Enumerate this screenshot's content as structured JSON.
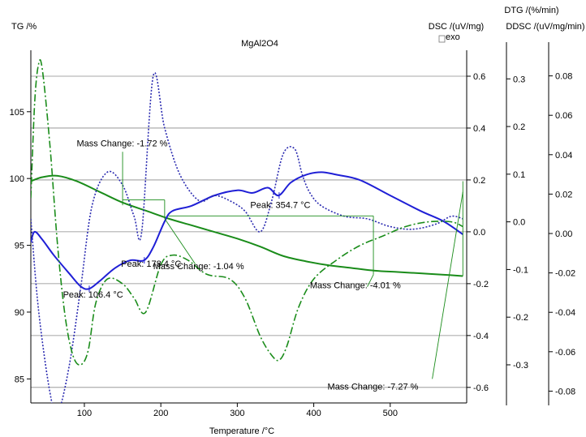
{
  "chart_data": {
    "type": "line",
    "title": "MgAl2O4",
    "xlabel": "Temperature /°C",
    "x_ticks": [
      100,
      200,
      300,
      400,
      500
    ],
    "xlim": [
      30,
      600
    ],
    "axes": {
      "tg": {
        "label": "TG /%",
        "ticks": [
          85,
          90,
          95,
          100,
          105
        ],
        "lim": [
          83.2,
          109.6
        ]
      },
      "dsc": {
        "label": "DSC /(uV/mg)",
        "ticks": [
          -0.6,
          -0.4,
          -0.2,
          0.0,
          0.2,
          0.4,
          0.6
        ],
        "tick_labels": [
          "-0.6",
          "-0.4",
          "-0.2",
          "0.0",
          "0.2",
          "0.4",
          "0.6"
        ],
        "lim": [
          -0.66,
          0.7
        ]
      },
      "dtg": {
        "label": "DTG /(%/min)",
        "ticks": [
          -0.3,
          -0.2,
          -0.1,
          0.0,
          0.1,
          0.2,
          0.3
        ],
        "tick_labels": [
          "-0.3",
          "-0.2",
          "-0.1",
          "0.0",
          "0.1",
          "0.2",
          "0.3"
        ],
        "lim": [
          -0.38,
          0.36
        ]
      },
      "ddsc": {
        "label": "DDSC /(uV/mg/min)",
        "ticks": [
          -0.08,
          -0.06,
          -0.04,
          -0.02,
          0.0,
          0.02,
          0.04,
          0.06,
          0.08
        ],
        "tick_labels": [
          "-0.08",
          "-0.06",
          "-0.04",
          "-0.02",
          "0.00",
          "0.02",
          "0.04",
          "0.06",
          "0.08"
        ],
        "lim": [
          -0.086,
          0.093
        ]
      }
    },
    "exo_label": "exo",
    "series": [
      {
        "axis": "tg",
        "color": "#1a8c1a",
        "style": "solid",
        "x": [
          30,
          45,
          65,
          90,
          120,
          150,
          180,
          210,
          240,
          270,
          300,
          330,
          360,
          390,
          420,
          450,
          480,
          510,
          540,
          570,
          595
        ],
        "y": [
          99.8,
          100.1,
          100.2,
          99.8,
          99.0,
          98.2,
          97.6,
          97.0,
          96.5,
          96.0,
          95.5,
          94.9,
          94.2,
          93.8,
          93.5,
          93.3,
          93.1,
          93.0,
          92.9,
          92.8,
          92.7
        ]
      },
      {
        "axis": "dsc",
        "color": "#1f1fd6",
        "style": "solid",
        "x": [
          30,
          35,
          45,
          60,
          80,
          95,
          106,
          120,
          140,
          160,
          178,
          190,
          205,
          215,
          240,
          270,
          300,
          320,
          340,
          354,
          370,
          390,
          410,
          430,
          460,
          500,
          540,
          570,
          595
        ],
        "y": [
          -0.04,
          0.0,
          -0.03,
          -0.09,
          -0.16,
          -0.21,
          -0.22,
          -0.19,
          -0.14,
          -0.11,
          -0.11,
          -0.06,
          0.04,
          0.08,
          0.1,
          0.14,
          0.16,
          0.15,
          0.17,
          0.14,
          0.19,
          0.22,
          0.23,
          0.22,
          0.2,
          0.14,
          0.08,
          0.04,
          -0.01
        ]
      },
      {
        "axis": "dsc",
        "color": "#2a2ab0",
        "style": "dotted",
        "x": [
          30,
          40,
          55,
          65,
          80,
          95,
          110,
          130,
          150,
          165,
          175,
          190,
          205,
          225,
          250,
          270,
          290,
          310,
          330,
          345,
          360,
          375,
          385,
          395,
          410,
          440,
          470,
          500,
          530,
          560,
          580,
          595
        ],
        "y": [
          0.05,
          -0.3,
          -0.62,
          -0.7,
          -0.52,
          -0.22,
          0.1,
          0.23,
          0.18,
          0.06,
          0.0,
          0.6,
          0.4,
          0.22,
          0.12,
          0.14,
          0.12,
          0.08,
          0.0,
          0.12,
          0.3,
          0.32,
          0.22,
          0.15,
          0.1,
          0.06,
          0.05,
          0.02,
          0.01,
          0.03,
          0.06,
          0.05
        ]
      },
      {
        "axis": "dtg",
        "color": "#1a8c1a",
        "style": "dashdot",
        "x": [
          30,
          35,
          40,
          45,
          55,
          65,
          75,
          85,
          95,
          105,
          115,
          130,
          150,
          165,
          180,
          200,
          215,
          235,
          260,
          290,
          310,
          330,
          345,
          355,
          365,
          380,
          400,
          430,
          460,
          490,
          520,
          550,
          580,
          595
        ],
        "y": [
          0.05,
          0.25,
          0.33,
          0.32,
          0.16,
          -0.05,
          -0.2,
          -0.28,
          -0.3,
          -0.27,
          -0.17,
          -0.12,
          -0.13,
          -0.16,
          -0.19,
          -0.09,
          -0.07,
          -0.08,
          -0.11,
          -0.12,
          -0.16,
          -0.24,
          -0.28,
          -0.29,
          -0.26,
          -0.18,
          -0.12,
          -0.08,
          -0.05,
          -0.03,
          -0.01,
          0.0,
          0.0,
          -0.01
        ]
      }
    ],
    "annotations": [
      {
        "text": "Mass Change: -1.72 %",
        "color": "#1a8c1a",
        "x": 90,
        "y_tg": 102.4
      },
      {
        "text": "Mass Change: -1.04 %",
        "color": "#1a8c1a",
        "x": 190,
        "y_tg": 93.2
      },
      {
        "text": "Mass Change: -4.01 %",
        "color": "#1a8c1a",
        "x": 395,
        "y_tg": 91.8
      },
      {
        "text": "Mass Change: -7.27 %",
        "color": "#1a8c1a",
        "x": 418,
        "y_tg": 84.2
      },
      {
        "text": "Peak: 106.4 °C",
        "color": "#1f1fd6",
        "x": 72,
        "y_tg": 91.1
      },
      {
        "text": "Peak: 178.4 °C",
        "color": "#1f1fd6",
        "x": 148,
        "y_tg": 93.4
      },
      {
        "text": "Peak: 354.7 °C",
        "color": "#1f1fd6",
        "x": 317,
        "y_tg": 97.8
      }
    ]
  }
}
